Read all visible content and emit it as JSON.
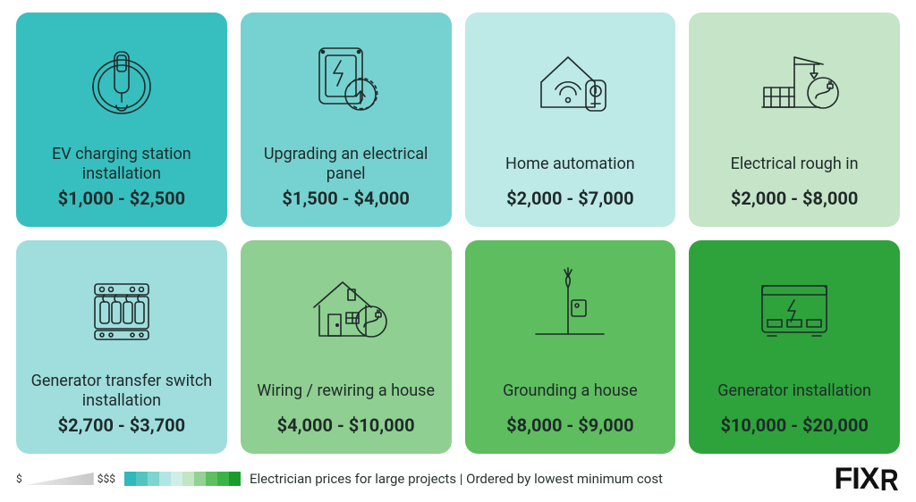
{
  "title": "Electrician prices for large projects | Ordered by lowest minimum cost",
  "brand": "FIXR",
  "legend_low": "$",
  "legend_high": "$$$",
  "swatch_colors": [
    "#2fb9bb",
    "#53c5c1",
    "#7ed4d1",
    "#b2e5e3",
    "#cfeee6",
    "#c2e5c2",
    "#93d194",
    "#5fbf60",
    "#3cb445",
    "#199c2b"
  ],
  "icon_stroke": "#1f2a2a",
  "text_color": "#1f2a2a",
  "label_fontsize": 18,
  "price_fontsize": 20,
  "cards": [
    {
      "label": "EV charging station installation",
      "price": "$1,000 - $2,500",
      "bg": "#37bfbf",
      "icon": "ev"
    },
    {
      "label": "Upgrading an electrical panel",
      "price": "$1,500 - $4,000",
      "bg": "#76d2d0",
      "icon": "panel"
    },
    {
      "label": "Home automation",
      "price": "$2,000 - $7,000",
      "bg": "#bde9e6",
      "icon": "automation"
    },
    {
      "label": "Electrical rough in",
      "price": "$2,000 - $8,000",
      "bg": "#c6e4c7",
      "icon": "roughin"
    },
    {
      "label": "Generator transfer switch installation",
      "price": "$2,700 - $3,700",
      "bg": "#9fdedd",
      "icon": "transfer"
    },
    {
      "label": "Wiring / rewiring a house",
      "price": "$4,000 - $10,000",
      "bg": "#8fcf91",
      "icon": "wiring"
    },
    {
      "label": "Grounding a house",
      "price": "$8,000 - $9,000",
      "bg": "#5ebd5f",
      "icon": "grounding"
    },
    {
      "label": "Generator installation",
      "price": "$10,000 - $20,000",
      "bg": "#2ea33b",
      "icon": "generator"
    }
  ]
}
